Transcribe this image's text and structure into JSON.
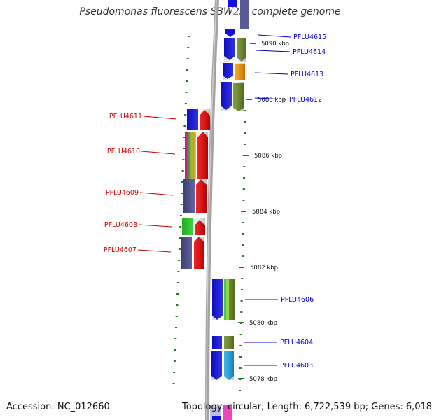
{
  "title": "Pseudomonas fluorescens SBW25, complete genome",
  "accession": "Accession: NC_012660",
  "topology": "Topology: circular; Length: 6,722,539 bp; Genes: 6,018",
  "scale_labels": [
    "5090 kbp",
    "5088 kbp",
    "5086 kbp",
    "5084 kbp",
    "5082 kbp",
    "5080 kbp",
    "5078 kbp"
  ],
  "genes_right": [
    "PFLU4615",
    "PFLU4614",
    "PFLU4613",
    "PFLU4612",
    "PFLU4606",
    "PFLU4604",
    "PFLU4603"
  ],
  "genes_left": [
    "PFLU4611",
    "PFLU4610",
    "PFLU4609",
    "PFLU4608",
    "PFLU4607"
  ],
  "colors": {
    "right_label": "#0000cc",
    "left_label": "#cc0000",
    "tick": "#1a7a1a",
    "backbone": "#999999",
    "blue": "#1010e0",
    "red": "#ee0000",
    "olive": "#6b8e23",
    "orange": "#ff9900",
    "slate": "#4a4a8c",
    "green": "#22cc22",
    "cyan": "#22aaee",
    "magenta": "#ee44bb"
  }
}
